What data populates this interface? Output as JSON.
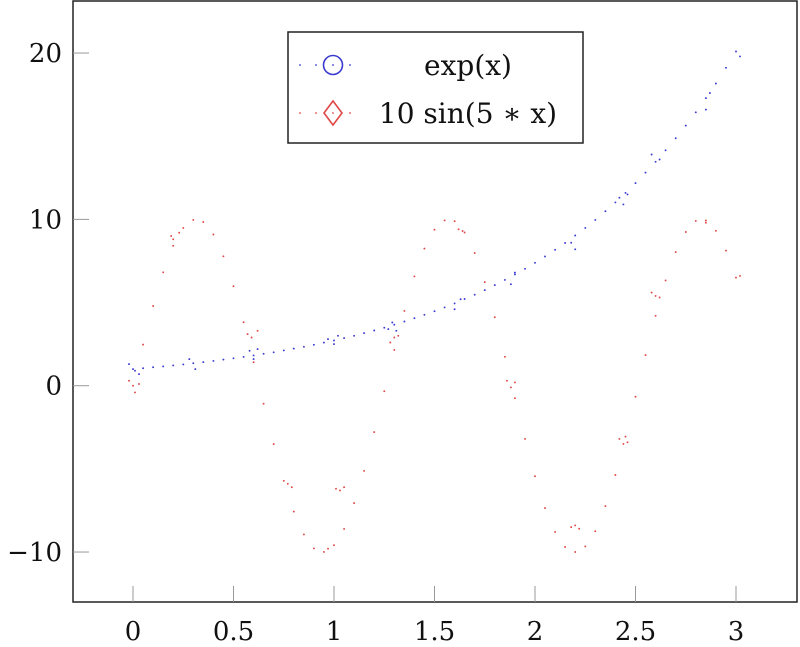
{
  "chart_data": {
    "type": "scatter",
    "title": "",
    "xlabel": "",
    "ylabel": "",
    "xlim": [
      -0.3,
      3.3
    ],
    "ylim": [
      -13.1,
      23.2
    ],
    "grid": false,
    "legend_position": "upper center",
    "x_ticks": [
      0,
      0.5,
      1,
      1.5,
      2,
      2.5,
      3
    ],
    "x_tick_labels": [
      "0",
      "0.5",
      "1",
      "1.5",
      "2",
      "2.5",
      "3"
    ],
    "y_ticks": [
      -10,
      0,
      10,
      20
    ],
    "y_tick_labels": [
      "−10",
      "0",
      "10",
      "20"
    ],
    "series": [
      {
        "name": "exp(x)",
        "legend_label": "exp(x)",
        "marker": "circle",
        "color": "#3a3ad0",
        "x": [
          0,
          0.05,
          0.1,
          0.15,
          0.2,
          0.25,
          0.3,
          0.35,
          0.4,
          0.45,
          0.5,
          0.55,
          0.6,
          0.65,
          0.7,
          0.75,
          0.8,
          0.85,
          0.9,
          0.95,
          1.0,
          1.05,
          1.1,
          1.15,
          1.2,
          1.25,
          1.3,
          1.35,
          1.4,
          1.45,
          1.5,
          1.55,
          1.6,
          1.65,
          1.7,
          1.75,
          1.8,
          1.85,
          1.9,
          1.95,
          2.0,
          2.05,
          2.1,
          2.15,
          2.2,
          2.25,
          2.3,
          2.35,
          2.4,
          2.45,
          2.5,
          2.55,
          2.6,
          2.65,
          2.7,
          2.75,
          2.8,
          2.85,
          2.9,
          2.95,
          3.0,
          -0.02,
          0.01,
          0.03,
          0.28,
          0.31,
          0.58,
          0.6,
          0.62,
          0.97,
          1.0,
          1.02,
          1.27,
          1.29,
          1.31,
          1.6,
          1.63,
          1.88,
          1.9,
          2.18,
          2.2,
          2.42,
          2.44,
          2.46,
          2.58,
          2.62,
          2.85,
          2.87,
          3.02
        ],
        "y": [
          1.0,
          1.05,
          1.11,
          1.16,
          1.22,
          1.28,
          1.35,
          1.42,
          1.49,
          1.57,
          1.65,
          1.73,
          1.82,
          1.92,
          2.01,
          2.12,
          2.23,
          2.34,
          2.46,
          2.59,
          2.72,
          2.86,
          3.0,
          3.16,
          3.32,
          3.49,
          3.67,
          3.86,
          4.06,
          4.26,
          4.48,
          4.71,
          4.95,
          5.21,
          5.47,
          5.75,
          6.05,
          6.36,
          6.69,
          7.03,
          7.39,
          7.77,
          8.17,
          8.58,
          9.03,
          9.49,
          9.97,
          10.49,
          11.02,
          11.59,
          12.18,
          12.81,
          13.46,
          14.15,
          14.88,
          15.64,
          16.44,
          17.29,
          18.17,
          19.11,
          20.09,
          1.3,
          0.9,
          0.7,
          1.6,
          1.0,
          2.1,
          1.6,
          2.2,
          2.8,
          2.5,
          3.0,
          3.4,
          3.8,
          3.3,
          4.6,
          5.2,
          6.1,
          6.8,
          8.6,
          8.2,
          11.3,
          10.9,
          11.5,
          13.9,
          13.6,
          16.6,
          17.6,
          19.8
        ]
      },
      {
        "name": "10 sin(5*x)",
        "legend_label": "10 sin(5 ∗ x)",
        "marker": "diamond",
        "color": "#e04848",
        "x": [
          0,
          0.05,
          0.1,
          0.15,
          0.2,
          0.25,
          0.3,
          0.35,
          0.4,
          0.45,
          0.5,
          0.55,
          0.6,
          0.65,
          0.7,
          0.75,
          0.8,
          0.85,
          0.9,
          0.95,
          1.0,
          1.05,
          1.1,
          1.15,
          1.2,
          1.25,
          1.3,
          1.35,
          1.4,
          1.45,
          1.5,
          1.55,
          1.6,
          1.65,
          1.7,
          1.75,
          1.8,
          1.85,
          1.9,
          1.95,
          2.0,
          2.05,
          2.1,
          2.15,
          2.2,
          2.25,
          2.3,
          2.35,
          2.4,
          2.45,
          2.5,
          2.55,
          2.6,
          2.65,
          2.7,
          2.75,
          2.8,
          2.85,
          2.9,
          2.95,
          3.0,
          -0.02,
          0.01,
          0.03,
          0.19,
          0.2,
          0.23,
          0.57,
          0.59,
          0.62,
          0.77,
          0.79,
          0.97,
          1.01,
          1.03,
          1.05,
          1.28,
          1.3,
          1.32,
          1.62,
          1.64,
          1.86,
          1.88,
          1.9,
          2.18,
          2.2,
          2.22,
          2.42,
          2.44,
          2.46,
          2.58,
          2.6,
          2.62,
          2.85,
          3.02
        ],
        "y": [
          0.0,
          2.47,
          4.79,
          6.82,
          8.41,
          9.49,
          9.97,
          9.84,
          9.09,
          7.78,
          5.98,
          3.82,
          1.41,
          -1.08,
          -3.51,
          -5.72,
          -7.57,
          -8.94,
          -9.78,
          -9.99,
          -9.59,
          -8.61,
          -7.06,
          -5.12,
          -2.79,
          -0.33,
          2.15,
          4.5,
          6.57,
          8.24,
          9.38,
          9.94,
          9.89,
          9.21,
          7.98,
          6.23,
          4.12,
          1.74,
          -0.75,
          -3.2,
          -5.44,
          -7.36,
          -8.79,
          -9.7,
          -10.0,
          -9.66,
          -8.75,
          -7.24,
          -5.37,
          -3.06,
          -0.66,
          1.84,
          4.2,
          6.33,
          8.03,
          9.24,
          9.91,
          9.93,
          9.31,
          8.12,
          6.5,
          0.3,
          -0.4,
          0.1,
          9.0,
          8.8,
          9.2,
          3.1,
          2.9,
          3.3,
          -5.9,
          -6.1,
          -9.8,
          -6.2,
          -6.3,
          -6.1,
          2.6,
          2.9,
          3.0,
          9.4,
          9.3,
          0.3,
          -0.1,
          0.2,
          -8.5,
          -8.4,
          -8.6,
          -3.2,
          -3.5,
          -3.4,
          5.6,
          5.4,
          5.3,
          9.8,
          6.6
        ]
      }
    ]
  },
  "legend": {
    "items": [
      {
        "label": "exp(x)",
        "marker": "circle-icon",
        "color": "#3a3ad0"
      },
      {
        "label": "10 sin(5 ∗ x)",
        "marker": "diamond-icon",
        "color": "#e04848"
      }
    ]
  }
}
